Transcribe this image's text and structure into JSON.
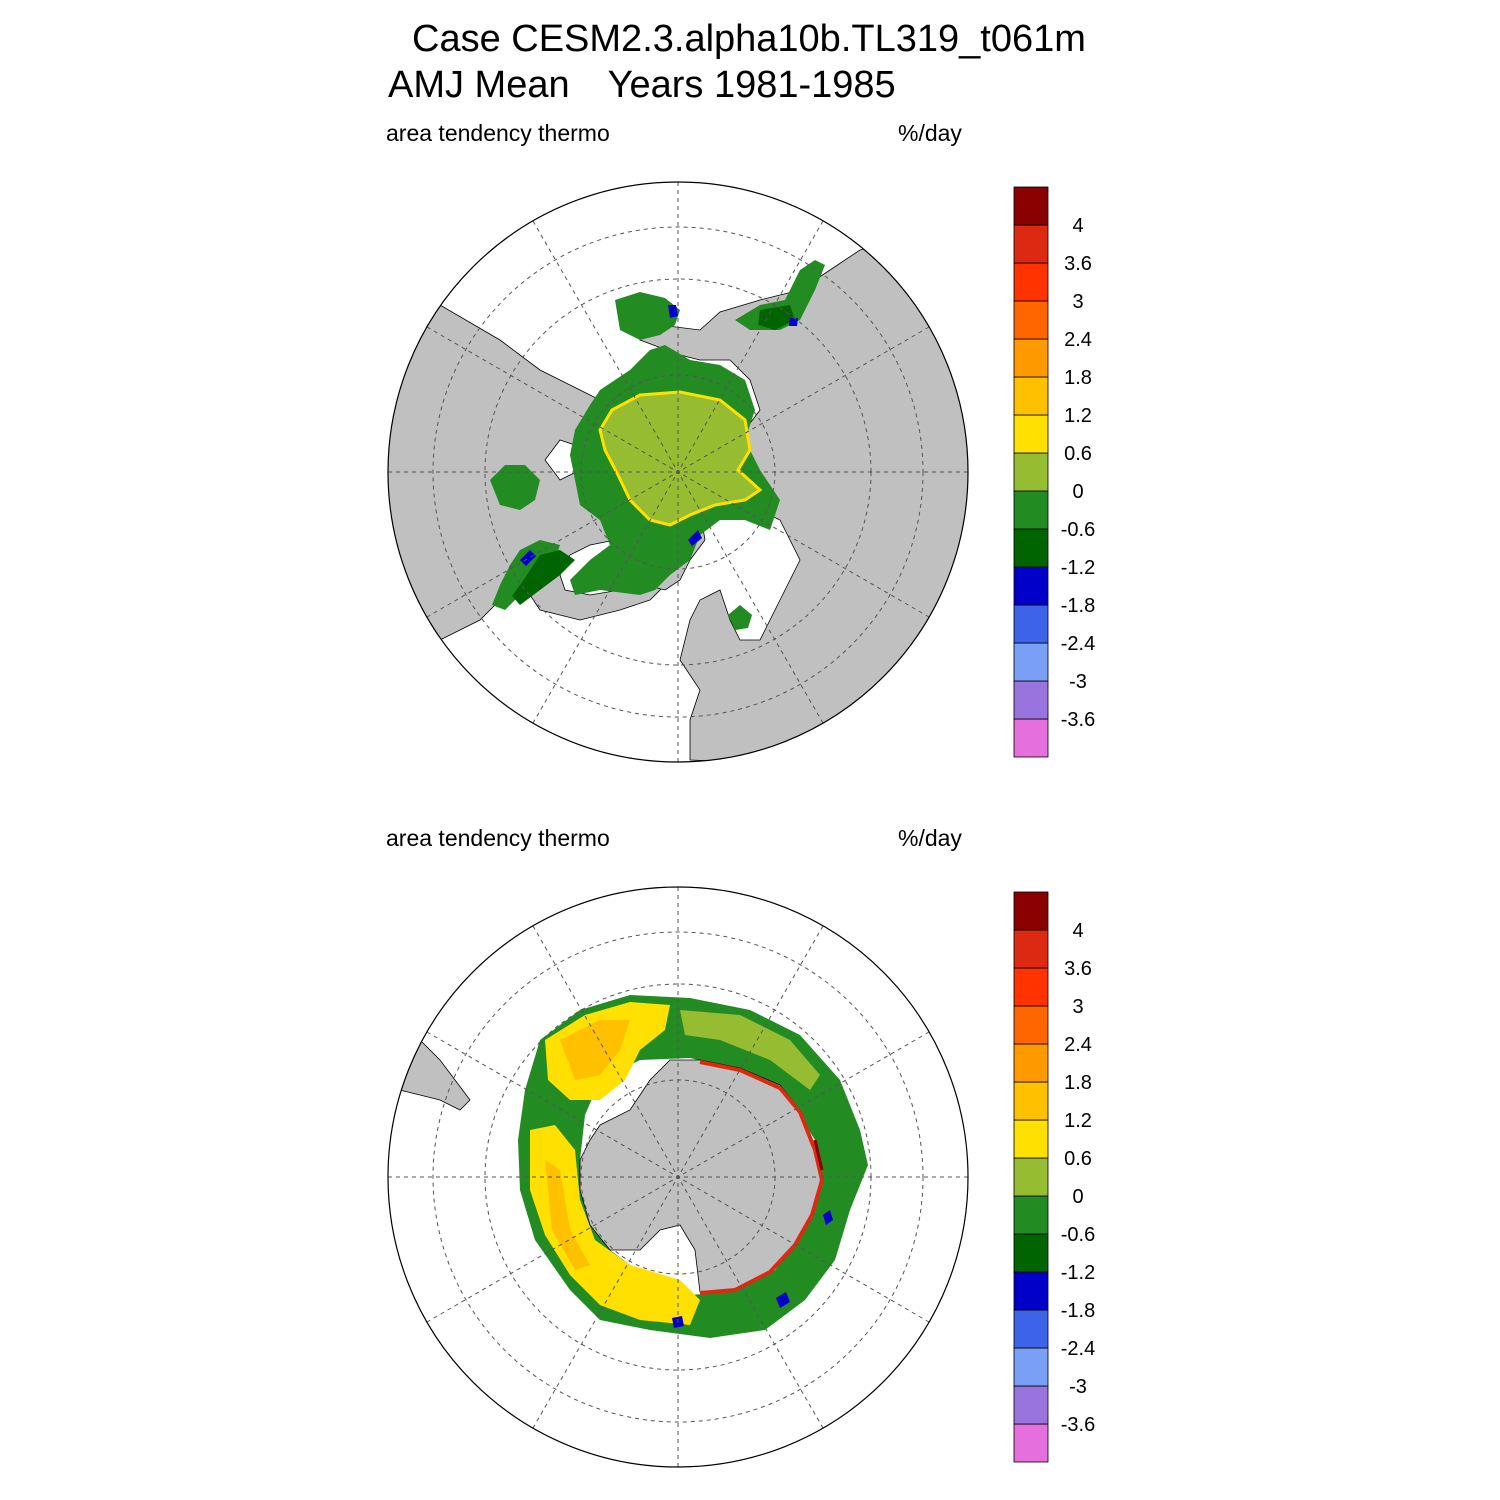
{
  "title": {
    "line1": "Case CESM2.3.alpha10b.TL319_t061m",
    "season": "AMJ Mean",
    "years": "Years 1981-1985"
  },
  "panels": [
    {
      "id": "nh",
      "left_label": "area tendency thermo",
      "units": "%/day"
    },
    {
      "id": "sh",
      "left_label": "area tendency thermo",
      "units": "%/day"
    }
  ],
  "colorbar": {
    "colors": [
      "#e56fdc",
      "#9a74de",
      "#7aa0f5",
      "#3d63e8",
      "#0000c8",
      "#006400",
      "#228b22",
      "#96bc32",
      "#ffe000",
      "#ffc000",
      "#ff9900",
      "#ff6600",
      "#ff3300",
      "#dc2a12",
      "#8b0000"
    ],
    "labels": [
      "-3.6",
      "-3",
      "-2.4",
      "-1.8",
      "-1.2",
      "-0.6",
      "0",
      "0.6",
      "1.2",
      "1.8",
      "2.4",
      "3",
      "3.6",
      "4"
    ]
  },
  "map_colors": {
    "land": "#c0c0c0",
    "ocean": "#ffffff",
    "grid": "#555555"
  }
}
